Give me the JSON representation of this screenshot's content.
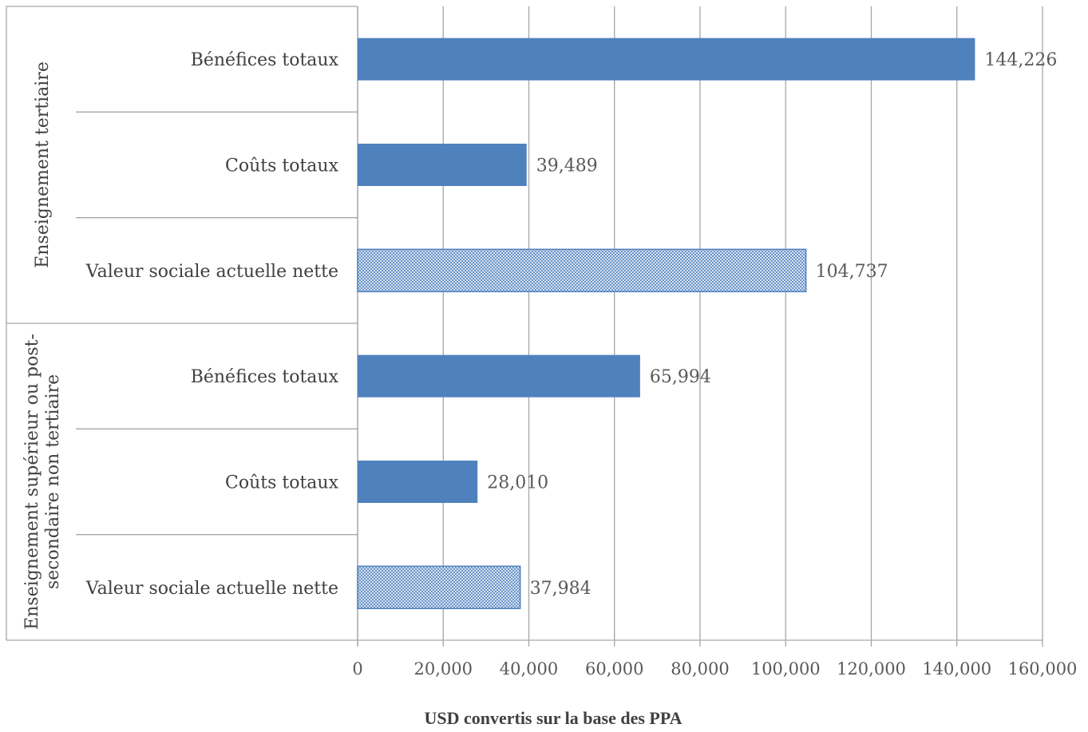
{
  "chart_data": {
    "type": "bar",
    "orientation": "horizontal",
    "groups": [
      {
        "label": "Enseignement tertiaire",
        "label_lines": [
          "Enseignement tertiaire"
        ],
        "bars": [
          {
            "category": "Bénéfices totaux",
            "value": 144226,
            "value_label": "144,226",
            "style": "solid"
          },
          {
            "category": "Coûts totaux",
            "value": 39489,
            "value_label": "39,489",
            "style": "solid"
          },
          {
            "category": "Valeur sociale actuelle nette",
            "value": 104737,
            "value_label": "104,737",
            "style": "hatched"
          }
        ]
      },
      {
        "label": "Enseignement supérieur ou post-secondaire non tertiaire",
        "label_lines": [
          "Enseignement supérieur ou post-",
          "secondaire non tertiaire"
        ],
        "bars": [
          {
            "category": "Bénéfices totaux",
            "value": 65994,
            "value_label": "65,994",
            "style": "solid"
          },
          {
            "category": "Coûts totaux",
            "value": 28010,
            "value_label": "28,010",
            "style": "solid"
          },
          {
            "category": "Valeur sociale actuelle nette",
            "value": 37984,
            "value_label": "37,984",
            "style": "hatched"
          }
        ]
      }
    ],
    "xlim": [
      0,
      160000
    ],
    "x_ticks": [
      0,
      20000,
      40000,
      60000,
      80000,
      100000,
      120000,
      140000,
      160000
    ],
    "x_tick_labels": [
      "0",
      "20,000",
      "40,000",
      "60,000",
      "80,000",
      "100,000",
      "120,000",
      "140,000",
      "160,000"
    ],
    "xlabel": "USD  convertis sur la base des PPA",
    "grid": "vertical",
    "colors": {
      "bar": "#4F81BD",
      "grid": "#A6A6A6",
      "axis": "#A6A6A6"
    }
  }
}
